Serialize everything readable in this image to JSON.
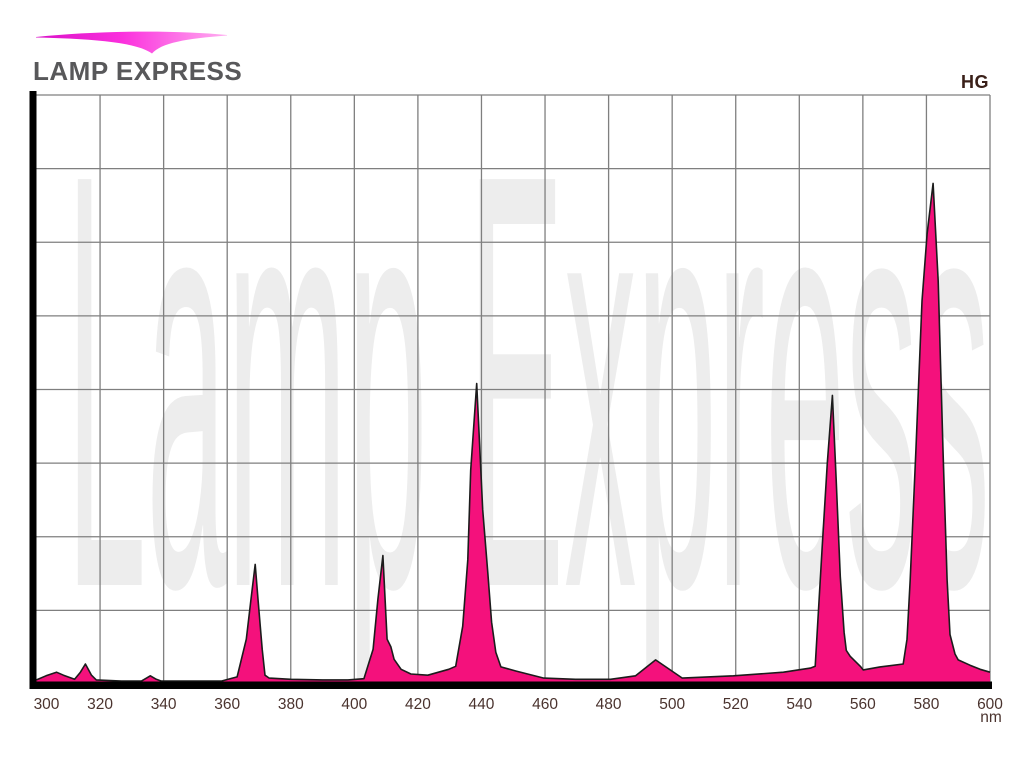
{
  "logo": {
    "text": "LAMP EXPRESS"
  },
  "header": {
    "lamp_type": "HG"
  },
  "chart": {
    "watermark": "Lamp Express",
    "x_axis_unit": "nm"
  },
  "chart_data": {
    "type": "area",
    "title": "",
    "xlabel": "",
    "ylabel": "",
    "x_unit": "nm",
    "xlim": [
      300,
      600
    ],
    "ylim": [
      0,
      100
    ],
    "x_ticks": [
      300,
      320,
      340,
      360,
      380,
      400,
      420,
      440,
      460,
      480,
      500,
      520,
      540,
      560,
      580,
      600
    ],
    "y_grid_rows": 8,
    "grid": true,
    "legend": false,
    "series": [
      {
        "name": "HG",
        "points": [
          [
            300,
            0.7
          ],
          [
            303,
            1.4
          ],
          [
            306.3,
            2.0
          ],
          [
            308.5,
            1.5
          ],
          [
            312,
            0.8
          ],
          [
            313.8,
            2.0
          ],
          [
            315.4,
            3.4
          ],
          [
            317.3,
            1.5
          ],
          [
            318.8,
            0.7
          ],
          [
            326.7,
            0.5
          ],
          [
            333,
            0.5
          ],
          [
            334.6,
            1.0
          ],
          [
            335.8,
            1.4
          ],
          [
            337.7,
            0.8
          ],
          [
            339.3,
            0.5
          ],
          [
            348.7,
            0.5
          ],
          [
            358.1,
            0.5
          ],
          [
            363.1,
            1.2
          ],
          [
            366,
            7.6
          ],
          [
            367.5,
            14.4
          ],
          [
            368.8,
            20.3
          ],
          [
            369.7,
            14.4
          ],
          [
            371,
            5.9
          ],
          [
            371.9,
            1.5
          ],
          [
            373.2,
            1.0
          ],
          [
            380,
            0.8
          ],
          [
            390,
            0.7
          ],
          [
            398,
            0.7
          ],
          [
            403,
            0.9
          ],
          [
            405.9,
            5.9
          ],
          [
            407.4,
            14.4
          ],
          [
            409,
            21.8
          ],
          [
            410.3,
            7.6
          ],
          [
            411.5,
            6.3
          ],
          [
            412.5,
            4.2
          ],
          [
            414.7,
            2.5
          ],
          [
            417.8,
            1.7
          ],
          [
            423.1,
            1.5
          ],
          [
            429.7,
            2.5
          ],
          [
            431.9,
            3.0
          ],
          [
            434.1,
            9.8
          ],
          [
            435.7,
            21.1
          ],
          [
            436.6,
            36.3
          ],
          [
            438.5,
            51.0
          ],
          [
            440.4,
            29.6
          ],
          [
            442,
            18.9
          ],
          [
            443.2,
            10.5
          ],
          [
            444.5,
            5.4
          ],
          [
            446.1,
            2.9
          ],
          [
            450.8,
            2.2
          ],
          [
            459.6,
            1.0
          ],
          [
            469.6,
            0.8
          ],
          [
            480.6,
            0.8
          ],
          [
            488.5,
            1.4
          ],
          [
            494.8,
            4.1
          ],
          [
            503.2,
            1.0
          ],
          [
            519.3,
            1.4
          ],
          [
            535,
            2.0
          ],
          [
            543.5,
            2.7
          ],
          [
            545,
            3.0
          ],
          [
            547.2,
            23.3
          ],
          [
            548.8,
            37.5
          ],
          [
            550.4,
            49.0
          ],
          [
            551.6,
            34.6
          ],
          [
            552.9,
            18.2
          ],
          [
            554.1,
            8.8
          ],
          [
            554.8,
            5.7
          ],
          [
            556,
            4.7
          ],
          [
            559.2,
            3.0
          ],
          [
            560.1,
            2.4
          ],
          [
            565.4,
            2.9
          ],
          [
            572.7,
            3.4
          ],
          [
            573.9,
            7.6
          ],
          [
            574.9,
            17.7
          ],
          [
            576.7,
            39.7
          ],
          [
            578.6,
            65.0
          ],
          [
            580.2,
            76.4
          ],
          [
            582.1,
            85.0
          ],
          [
            583.7,
            68.4
          ],
          [
            585.2,
            39.7
          ],
          [
            586.5,
            17.7
          ],
          [
            587.4,
            8.4
          ],
          [
            589,
            5.1
          ],
          [
            590,
            4.1
          ],
          [
            593.7,
            3.2
          ],
          [
            596.9,
            2.5
          ],
          [
            600,
            2.0
          ]
        ]
      }
    ],
    "peak_wavelengths_nm": [
      315,
      369,
      409,
      438,
      495,
      550,
      582
    ],
    "colors": {
      "area_fill": "#F4117C",
      "area_stroke": "#1c1c1c",
      "grid": "#7f7f7f",
      "axis": "#000000",
      "tick_label": "#4a332e",
      "hg_label": "#3a2019",
      "logo_text": "#58585a",
      "watermark": "#ededed",
      "swoosh_gradient": [
        "#d911c8",
        "#fb30dd",
        "#ffaef0"
      ]
    }
  }
}
